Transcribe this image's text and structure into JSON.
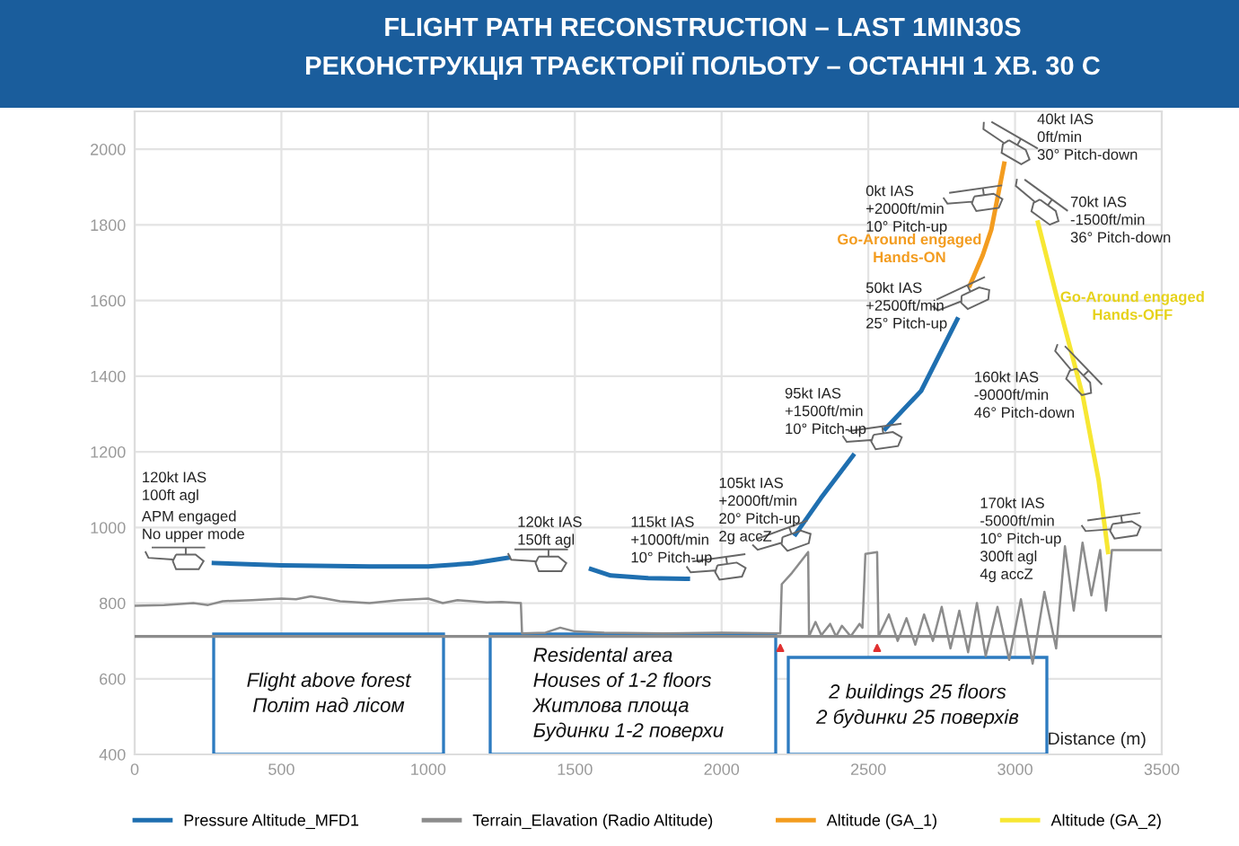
{
  "chart_data": {
    "type": "line",
    "title": "FLIGHT PATH RECONSTRUCTION – LAST 1MIN30S\nРЕКОНСТРУКЦІЯ ТРАЄКТОРІЇ ПОЛЬОТУ – ОСТАННІ 1 ХВ. 30 С",
    "xlabel": "Distance (m)",
    "xlim": [
      0,
      3500
    ],
    "xticks": [
      0,
      500,
      1000,
      1500,
      2000,
      2500,
      3000,
      3500
    ],
    "ylim": [
      400,
      2100
    ],
    "yticks": [
      400,
      600,
      800,
      1000,
      1200,
      1400,
      1600,
      1800,
      2000
    ],
    "grid": true,
    "legend": "bottom",
    "series": [
      {
        "name": "Pressure Altitude_MFD1",
        "color": "#1f6fb0",
        "x": [
          270,
          500,
          800,
          1000,
          1150,
          1273,
          1400,
          1555,
          1622,
          1750,
          1885,
          2050,
          2252,
          2338,
          2448,
          2500,
          2558,
          2680,
          2803
        ],
        "values": [
          906,
          900,
          897,
          897,
          905,
          920,
          null,
          890,
          873,
          866,
          864,
          null,
          982,
          1077,
          1190,
          null,
          1261,
          1361,
          1550
        ]
      },
      {
        "name": "Terrain_Elavation (Radio Altitude)",
        "color": "#8c8c8c",
        "x": [
          0,
          100,
          200,
          250,
          300,
          400,
          500,
          550,
          600,
          650,
          700,
          800,
          900,
          1000,
          1050,
          1100,
          1150,
          1200,
          1250,
          1316,
          1320,
          1400,
          1450,
          1500,
          1600,
          1800,
          2000,
          2200,
          2205,
          2240,
          2295,
          2298,
          2320,
          2340,
          2370,
          2390,
          2410,
          2440,
          2470,
          2480,
          2490,
          2530,
          2535,
          2570,
          2600,
          2630,
          2660,
          2690,
          2720,
          2750,
          2780,
          2810,
          2840,
          2870,
          2900,
          2940,
          2980,
          3020,
          3060,
          3100,
          3140,
          3170,
          3200,
          3230,
          3260,
          3290,
          3310,
          3330,
          3500
        ],
        "values": [
          793,
          795,
          800,
          795,
          805,
          808,
          812,
          810,
          818,
          812,
          805,
          800,
          808,
          812,
          800,
          808,
          805,
          802,
          803,
          800,
          720,
          722,
          735,
          725,
          722,
          720,
          722,
          720,
          850,
          880,
          935,
          712,
          750,
          715,
          745,
          712,
          740,
          712,
          745,
          735,
          930,
          935,
          712,
          770,
          700,
          760,
          690,
          770,
          700,
          790,
          680,
          780,
          670,
          800,
          660,
          790,
          650,
          810,
          640,
          830,
          680,
          950,
          780,
          960,
          820,
          940,
          780,
          940,
          940
        ]
      },
      {
        "name": "Altitude (GA_1)",
        "color": "#f39c1f",
        "x": [
          2846,
          2890,
          2919,
          2963
        ],
        "values": [
          1640,
          1720,
          1787,
          1962
        ]
      },
      {
        "name": "Altitude (GA_2)",
        "color": "#f7e733",
        "x": [
          3078,
          3140,
          3231,
          3285,
          3317
        ],
        "values": [
          1806,
          1616,
          1347,
          1124,
          935
        ]
      }
    ],
    "ref_lines": [
      {
        "axis": "y",
        "value": 712,
        "color": "#8c8c8c"
      }
    ],
    "annotations": [
      "120kt IAS\n100ft agl",
      "APM engaged\nNo upper mode",
      "120kt IAS\n150ft agl",
      "115kt IAS\n+1000ft/min\n10° Pitch-up",
      "105kt IAS\n+2000ft/min\n20° Pitch-up\n2g accZ",
      "95kt IAS\n+1500ft/min\n10° Pitch-up",
      "50kt IAS\n+2500ft/min\n25° Pitch-up",
      "0kt IAS\n+2000ft/min\n10° Pitch-up",
      "40kt IAS\n0ft/min\n30° Pitch-down",
      "70kt IAS\n-1500ft/min\n36° Pitch-down",
      "160kt IAS\n-9000ft/min\n46° Pitch-down",
      "170kt IAS\n-5000ft/min\n10° Pitch-up\n300ft agl\n4g accZ",
      "Go-Around engaged\nHands-ON",
      "Go-Around engaged\nHands-OFF",
      "Flight above forest\nПоліт над лісом",
      "Residental area\nHouses of 1-2 floors\nЖитлова площа\nБудинки 1-2 поверхи",
      "2 buildings 25 floors\n2 будинки 25 поверхів"
    ]
  }
}
